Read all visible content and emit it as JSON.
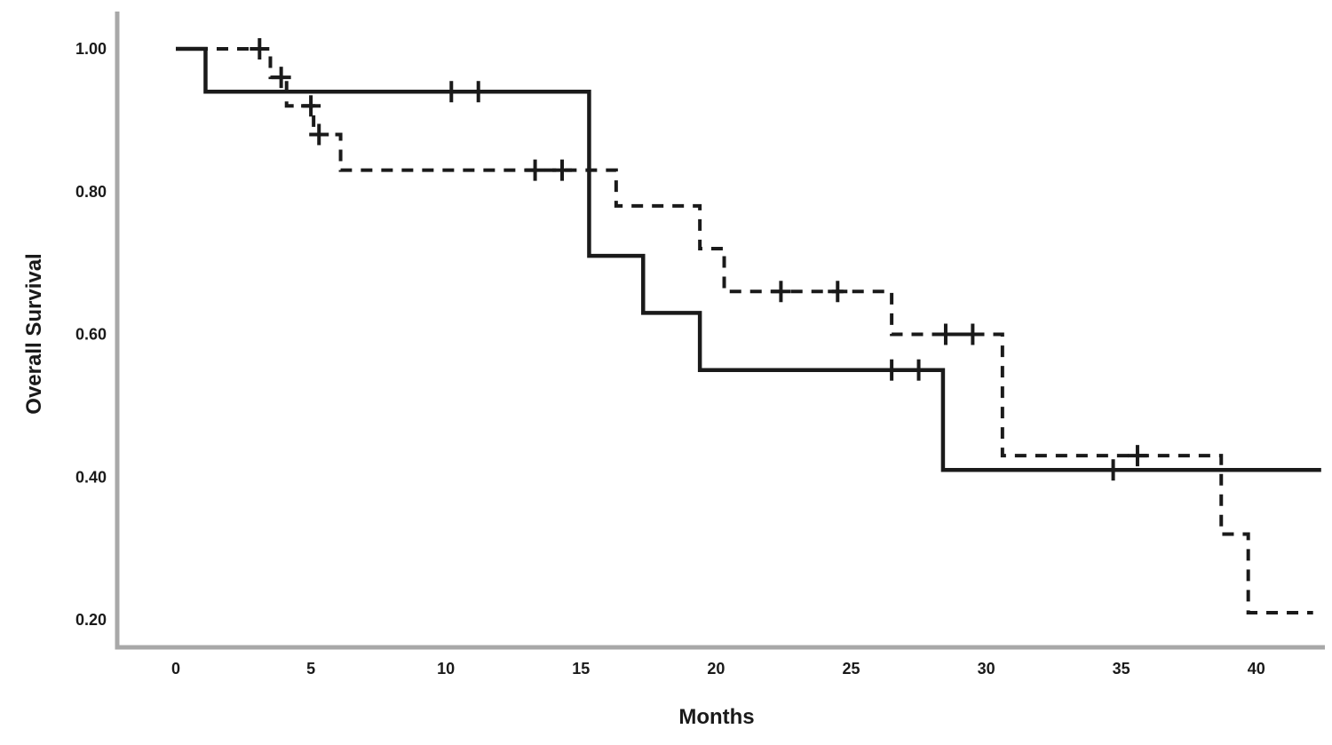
{
  "figure": {
    "background": "#ffffff"
  },
  "chart_data": {
    "type": "line",
    "subtype": "kaplan_meier_step_curves",
    "title": "",
    "xlabel": "Months",
    "ylabel": "Overall Survival",
    "legend": "none",
    "grid": false,
    "axis_color": "#a8a8a8",
    "curve_color": "#1a1a1a",
    "x_axis": {
      "min": 0,
      "max": 42.5,
      "ticks": [
        {
          "v": 0,
          "label": "0"
        },
        {
          "v": 5,
          "label": "5"
        },
        {
          "v": 10,
          "label": "10"
        },
        {
          "v": 15,
          "label": "15"
        },
        {
          "v": 20,
          "label": "20"
        },
        {
          "v": 25,
          "label": "25"
        },
        {
          "v": 30,
          "label": "30"
        },
        {
          "v": 35,
          "label": "35"
        },
        {
          "v": 40,
          "label": "40"
        }
      ]
    },
    "y_axis": {
      "min": 0.15,
      "max": 1.05,
      "ticks": [
        {
          "v": 1.0,
          "label": "1.00"
        },
        {
          "v": 0.8,
          "label": "0.80"
        },
        {
          "v": 0.6,
          "label": "0.60"
        },
        {
          "v": 0.4,
          "label": "0.40"
        },
        {
          "v": 0.2,
          "label": "0.20"
        }
      ]
    },
    "series": [
      {
        "name": "solid-curve",
        "line_style": "solid",
        "steps": [
          [
            0,
            1.0
          ],
          [
            1.1,
            0.94
          ],
          [
            15.3,
            0.71
          ],
          [
            17.3,
            0.63
          ],
          [
            19.4,
            0.55
          ],
          [
            28.4,
            0.41
          ]
        ],
        "end_month": 42.4,
        "censor_marks": [
          [
            10.2,
            0.94
          ],
          [
            11.2,
            0.94
          ],
          [
            26.5,
            0.55
          ],
          [
            27.5,
            0.55
          ],
          [
            34.7,
            0.41
          ]
        ]
      },
      {
        "name": "dashed-curve",
        "line_style": "dashed",
        "steps": [
          [
            0,
            1.0
          ],
          [
            3.5,
            0.96
          ],
          [
            4.1,
            0.92
          ],
          [
            5.1,
            0.88
          ],
          [
            6.1,
            0.83
          ],
          [
            16.3,
            0.78
          ],
          [
            19.4,
            0.72
          ],
          [
            20.3,
            0.66
          ],
          [
            26.5,
            0.6
          ],
          [
            30.6,
            0.43
          ],
          [
            38.7,
            0.32
          ],
          [
            39.7,
            0.21
          ]
        ],
        "end_month": 42.1,
        "censor_marks": [
          [
            3.1,
            1.0
          ],
          [
            3.9,
            0.96
          ],
          [
            5.0,
            0.92
          ],
          [
            5.3,
            0.88
          ],
          [
            13.3,
            0.83
          ],
          [
            14.3,
            0.83
          ],
          [
            22.4,
            0.66
          ],
          [
            24.5,
            0.66
          ],
          [
            28.5,
            0.6
          ],
          [
            29.5,
            0.6
          ],
          [
            35.6,
            0.43
          ]
        ]
      }
    ]
  }
}
